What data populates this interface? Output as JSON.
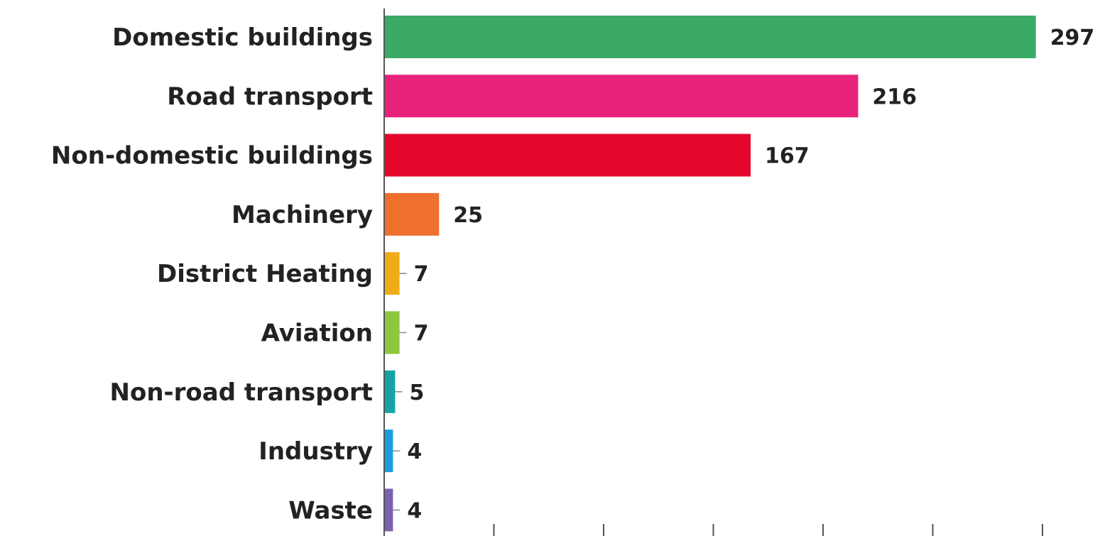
{
  "chart_data": {
    "type": "bar",
    "orientation": "horizontal",
    "categories": [
      "Domestic buildings",
      "Road transport",
      "Non-domestic buildings",
      "Machinery",
      "District Heating",
      "Aviation",
      "Non-road transport",
      "Industry",
      "Waste"
    ],
    "values": [
      297,
      216,
      167,
      25,
      7,
      7,
      5,
      4,
      4
    ],
    "colors": [
      "#3aaa64",
      "#e8227a",
      "#e4062b",
      "#ef6f2d",
      "#f0ac17",
      "#8dc63f",
      "#15a3a4",
      "#1a9edb",
      "#7b62b0"
    ],
    "xlim": [
      0,
      300
    ],
    "x_tick_values": [
      0,
      50,
      100,
      150,
      200,
      250,
      300
    ],
    "grid": false,
    "legend": "none",
    "axis_color": "#555555",
    "text_color": "#222222",
    "background": "#ffffff"
  }
}
